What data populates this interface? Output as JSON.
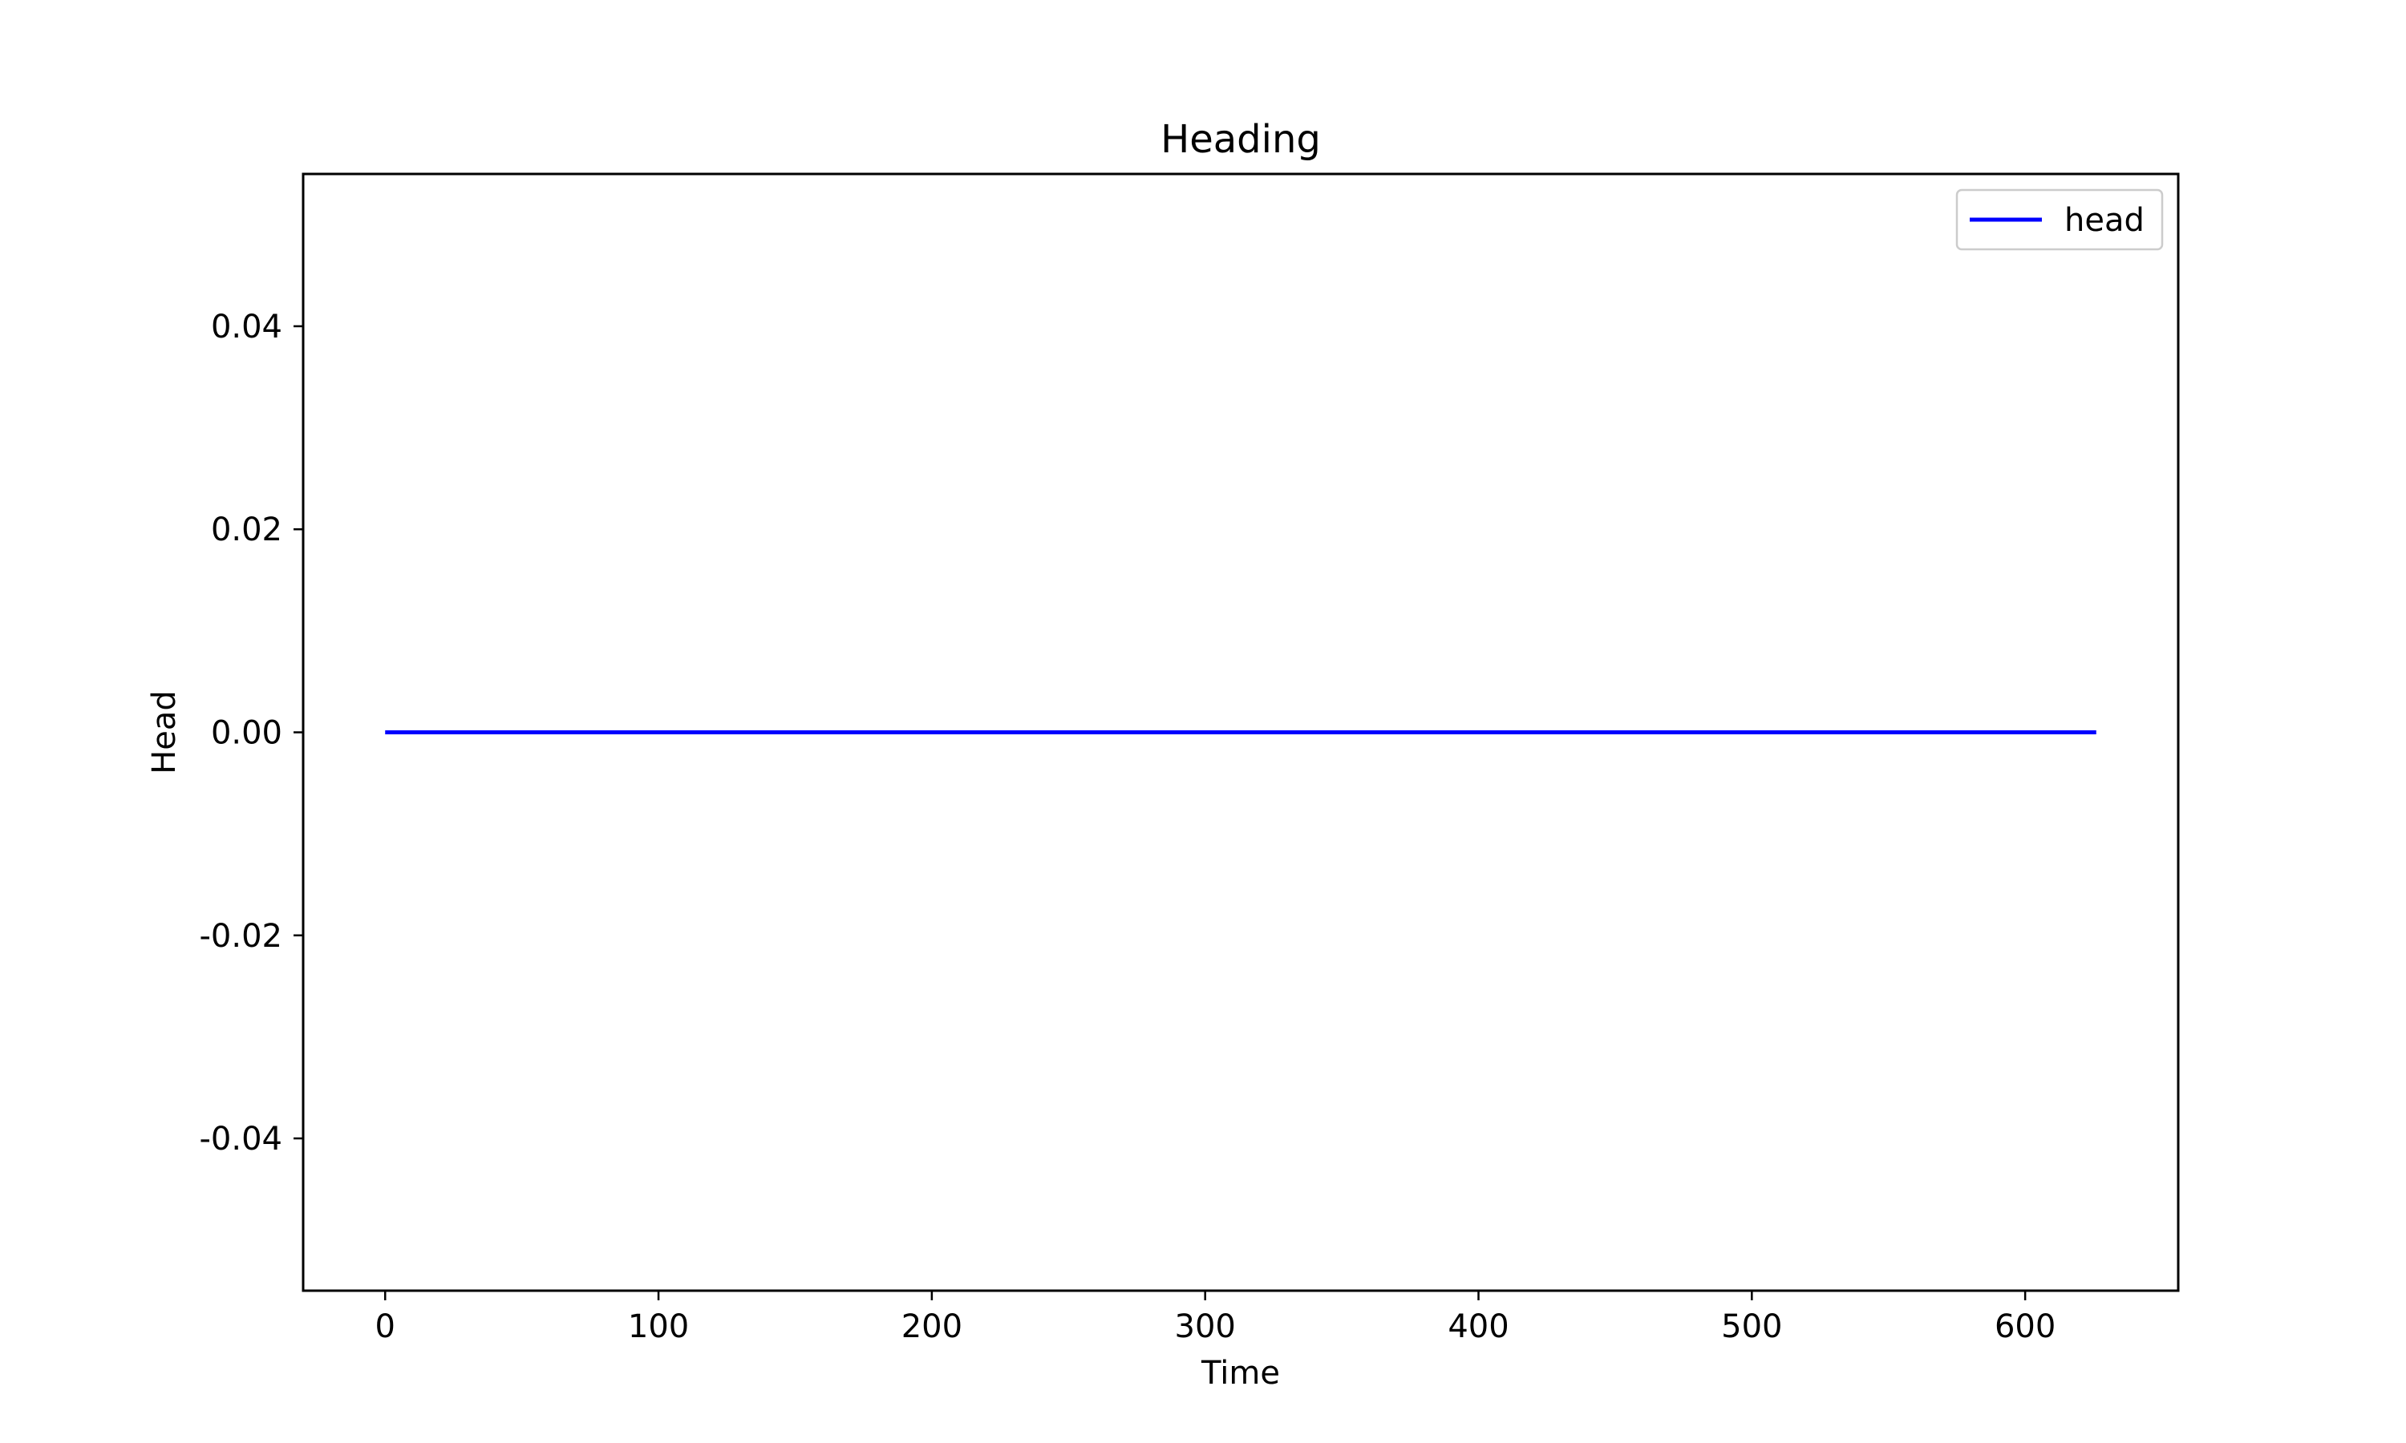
{
  "chart_data": {
    "type": "line",
    "title": "Heading",
    "xlabel": "Time",
    "ylabel": "Head",
    "xlim": [
      -30,
      656
    ],
    "ylim": [
      -0.055,
      0.055
    ],
    "xticks": [
      0,
      100,
      200,
      300,
      400,
      500,
      600
    ],
    "xtick_labels": [
      "0",
      "100",
      "200",
      "300",
      "400",
      "500",
      "600"
    ],
    "yticks": [
      -0.04,
      -0.02,
      0.0,
      0.02,
      0.04
    ],
    "ytick_labels": [
      "-0.04",
      "-0.02",
      "0.00",
      "0.02",
      "0.04"
    ],
    "grid": false,
    "legend_position": "upper right",
    "series": [
      {
        "name": "head",
        "color": "#0000ff",
        "x": [
          0,
          626
        ],
        "y": [
          0.0,
          0.0
        ]
      }
    ]
  }
}
